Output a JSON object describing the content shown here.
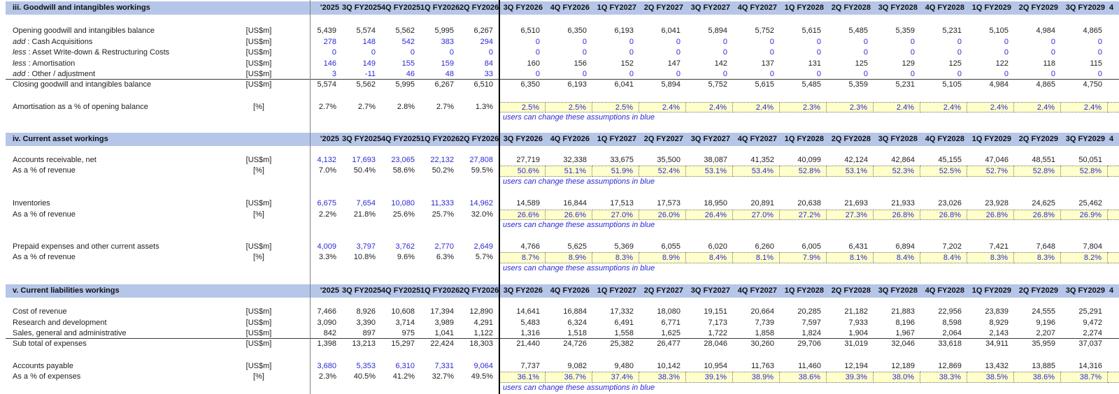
{
  "colors": {
    "band": "#b6c6e8",
    "input_blue": "#2a2ad2",
    "assumption_yellow": "#ffffcc",
    "text": "#1d1d1d"
  },
  "note": "users can change these assumptions in blue",
  "columns": {
    "clipped_left": "'2025",
    "historical": [
      "3Q FY2025",
      "4Q FY2025",
      "1Q FY2026",
      "2Q FY2026"
    ],
    "forecast": [
      "3Q FY2026",
      "4Q FY2026",
      "1Q FY2027",
      "2Q FY2027",
      "3Q FY2027",
      "4Q FY2027",
      "1Q FY2028",
      "2Q FY2028",
      "3Q FY2028",
      "4Q FY2028",
      "1Q FY2029",
      "2Q FY2029",
      "3Q FY2029"
    ],
    "clipped_right": "4"
  },
  "sections": [
    {
      "title": "iii. Goodwill and intangibles workings",
      "rows": [
        {
          "t": "sp",
          "h": 16
        },
        {
          "t": "d",
          "label": "Opening goodwill and intangibles balance",
          "unit": "[US$m]",
          "hc": "k",
          "fk": "k",
          "v0": "5,439",
          "hist": [
            "5,574",
            "5,562",
            "5,995",
            "6,267"
          ],
          "fc": [
            "6,510",
            "6,350",
            "6,193",
            "6,041",
            "5,894",
            "5,752",
            "5,615",
            "5,485",
            "5,359",
            "5,231",
            "5,105",
            "4,984",
            "4,865"
          ]
        },
        {
          "t": "d",
          "prefix": "add",
          "label": " : Cash Acquisitions",
          "unit": "[US$m]",
          "hc": "b",
          "fk": "b",
          "v0": "278",
          "hist": [
            "148",
            "542",
            "383",
            "294"
          ],
          "fc": [
            "0",
            "0",
            "0",
            "0",
            "0",
            "0",
            "0",
            "0",
            "0",
            "0",
            "0",
            "0",
            "0"
          ]
        },
        {
          "t": "d",
          "prefix": "less",
          "label": " : Asset Write-down & Restructuring Costs",
          "unit": "[US$m]",
          "hc": "b",
          "fk": "b",
          "v0": "0",
          "hist": [
            "0",
            "0",
            "0",
            "0"
          ],
          "fc": [
            "0",
            "0",
            "0",
            "0",
            "0",
            "0",
            "0",
            "0",
            "0",
            "0",
            "0",
            "0",
            "0"
          ]
        },
        {
          "t": "d",
          "prefix": "less",
          "label": " : Amortisation",
          "unit": "[US$m]",
          "hc": "b",
          "fk": "k",
          "v0": "146",
          "hist": [
            "149",
            "155",
            "159",
            "84"
          ],
          "fc": [
            "160",
            "156",
            "152",
            "147",
            "142",
            "137",
            "131",
            "125",
            "129",
            "125",
            "122",
            "118",
            "115"
          ]
        },
        {
          "t": "d",
          "prefix": "add",
          "label": " : Other / adjustment",
          "unit": "[US$m]",
          "hc": "b",
          "fk": "b",
          "bb": true,
          "v0": "3",
          "hist": [
            "-11",
            "46",
            "48",
            "33"
          ],
          "fc": [
            "0",
            "0",
            "0",
            "0",
            "0",
            "0",
            "0",
            "0",
            "0",
            "0",
            "0",
            "0",
            "0"
          ]
        },
        {
          "t": "d",
          "label": "Closing goodwill and intangibles balance",
          "unit": "[US$m]",
          "hc": "k",
          "fk": "k",
          "v0": "5,574",
          "hist": [
            "5,562",
            "5,995",
            "6,267",
            "6,510"
          ],
          "fc": [
            "6,350",
            "6,193",
            "6,041",
            "5,894",
            "5,752",
            "5,615",
            "5,485",
            "5,359",
            "5,231",
            "5,105",
            "4,984",
            "4,865",
            "4,750"
          ]
        },
        {
          "t": "sp",
          "h": 16
        },
        {
          "t": "d",
          "label": "Amortisation as a % of opening balance",
          "unit": "[%]",
          "hc": "k",
          "fk": "y",
          "v0": "2.7%",
          "hist": [
            "2.7%",
            "2.8%",
            "2.7%",
            "1.3%"
          ],
          "fc": [
            "2.5%",
            "2.5%",
            "2.5%",
            "2.4%",
            "2.4%",
            "2.4%",
            "2.3%",
            "2.3%",
            "2.4%",
            "2.4%",
            "2.4%",
            "2.4%",
            "2.4%"
          ]
        },
        {
          "t": "n"
        },
        {
          "t": "sp",
          "h": 13
        }
      ]
    },
    {
      "title": "iv. Current asset workings",
      "rows": [
        {
          "t": "sp",
          "h": 13
        },
        {
          "t": "d",
          "label": "Accounts receivable, net",
          "unit": "[US$m]",
          "hc": "b",
          "fk": "k",
          "v0": "4,132",
          "hist": [
            "17,693",
            "23,065",
            "22,132",
            "27,808"
          ],
          "fc": [
            "27,719",
            "32,338",
            "33,675",
            "35,500",
            "38,087",
            "41,352",
            "40,099",
            "42,124",
            "42,864",
            "45,155",
            "47,046",
            "48,551",
            "50,051"
          ]
        },
        {
          "t": "d",
          "label": "As a % of revenue",
          "unit": "[%]",
          "hc": "k",
          "fk": "y",
          "v0": "7.0%",
          "hist": [
            "50.4%",
            "58.6%",
            "50.2%",
            "59.5%"
          ],
          "fc": [
            "50.6%",
            "51.1%",
            "51.9%",
            "52.4%",
            "53.1%",
            "53.4%",
            "52.8%",
            "53.1%",
            "52.3%",
            "52.5%",
            "52.7%",
            "52.8%",
            "52.8%"
          ]
        },
        {
          "t": "n"
        },
        {
          "t": "sp",
          "h": 16
        },
        {
          "t": "d",
          "label": "Inventories",
          "unit": "[US$m]",
          "hc": "b",
          "fk": "k",
          "v0": "6,675",
          "hist": [
            "7,654",
            "10,080",
            "11,333",
            "14,962"
          ],
          "fc": [
            "14,589",
            "16,844",
            "17,513",
            "17,573",
            "18,950",
            "20,891",
            "20,638",
            "21,693",
            "21,933",
            "23,026",
            "23,928",
            "24,625",
            "25,462"
          ]
        },
        {
          "t": "d",
          "label": "As a % of revenue",
          "unit": "[%]",
          "hc": "k",
          "fk": "y",
          "v0": "2.2%",
          "hist": [
            "21.8%",
            "25.6%",
            "25.7%",
            "32.0%"
          ],
          "fc": [
            "26.6%",
            "26.6%",
            "27.0%",
            "26.0%",
            "26.4%",
            "27.0%",
            "27.2%",
            "27.3%",
            "26.8%",
            "26.8%",
            "26.8%",
            "26.8%",
            "26.9%"
          ]
        },
        {
          "t": "n"
        },
        {
          "t": "sp",
          "h": 15
        },
        {
          "t": "d",
          "label": "Prepaid expenses and other current assets",
          "unit": "[US$m]",
          "hc": "b",
          "fk": "k",
          "v0": "4,009",
          "hist": [
            "3,797",
            "3,762",
            "2,770",
            "2,649"
          ],
          "fc": [
            "4,766",
            "5,625",
            "5,369",
            "6,055",
            "6,020",
            "6,260",
            "6,005",
            "6,431",
            "6,894",
            "7,202",
            "7,421",
            "7,648",
            "7,804"
          ]
        },
        {
          "t": "d",
          "label": "As a % of revenue",
          "unit": "[%]",
          "hc": "k",
          "fk": "y",
          "v0": "3.3%",
          "hist": [
            "10.8%",
            "9.6%",
            "6.3%",
            "5.7%"
          ],
          "fc": [
            "8.7%",
            "8.9%",
            "8.3%",
            "8.9%",
            "8.4%",
            "8.1%",
            "7.9%",
            "8.1%",
            "8.4%",
            "8.4%",
            "8.3%",
            "8.3%",
            "8.2%"
          ]
        },
        {
          "t": "n"
        },
        {
          "t": "sp",
          "h": 15
        }
      ]
    },
    {
      "title": "v. Current liabilities workings",
      "rows": [
        {
          "t": "sp",
          "h": 13
        },
        {
          "t": "d",
          "label": "Cost of revenue",
          "unit": "[US$m]",
          "hc": "k",
          "fk": "k",
          "v0": "7,466",
          "hist": [
            "8,926",
            "10,608",
            "17,394",
            "12,890"
          ],
          "fc": [
            "14,641",
            "16,884",
            "17,332",
            "18,080",
            "19,151",
            "20,664",
            "20,285",
            "21,182",
            "21,883",
            "22,956",
            "23,839",
            "24,555",
            "25,291"
          ]
        },
        {
          "t": "d",
          "label": "Research and development",
          "unit": "[US$m]",
          "hc": "k",
          "fk": "k",
          "v0": "3,090",
          "hist": [
            "3,390",
            "3,714",
            "3,989",
            "4,291"
          ],
          "fc": [
            "5,483",
            "6,324",
            "6,491",
            "6,771",
            "7,173",
            "7,739",
            "7,597",
            "7,933",
            "8,196",
            "8,598",
            "8,929",
            "9,196",
            "9,472"
          ]
        },
        {
          "t": "d",
          "label": "Sales, general and administrative",
          "unit": "[US$m]",
          "hc": "k",
          "fk": "k",
          "bb": true,
          "v0": "842",
          "hist": [
            "897",
            "975",
            "1,041",
            "1,122"
          ],
          "fc": [
            "1,316",
            "1,518",
            "1,558",
            "1,625",
            "1,722",
            "1,858",
            "1,824",
            "1,904",
            "1,967",
            "2,064",
            "2,143",
            "2,207",
            "2,274"
          ]
        },
        {
          "t": "d",
          "label": "Sub total of expenses",
          "unit": "[US$m]",
          "hc": "k",
          "fk": "k",
          "v0": "1,398",
          "hist": [
            "13,213",
            "15,297",
            "22,424",
            "18,303"
          ],
          "fc": [
            "21,440",
            "24,726",
            "25,382",
            "26,477",
            "28,046",
            "30,260",
            "29,706",
            "31,019",
            "32,046",
            "33,618",
            "34,911",
            "35,959",
            "37,037"
          ]
        },
        {
          "t": "sp",
          "h": 16
        },
        {
          "t": "d",
          "label": "Accounts payable",
          "unit": "[US$m]",
          "hc": "b",
          "fk": "k",
          "v0": "3,680",
          "hist": [
            "5,353",
            "6,310",
            "7,331",
            "9,064"
          ],
          "fc": [
            "7,737",
            "9,082",
            "9,480",
            "10,142",
            "10,954",
            "11,763",
            "11,460",
            "12,194",
            "12,189",
            "12,869",
            "13,432",
            "13,885",
            "14,316"
          ]
        },
        {
          "t": "d",
          "label": "As a % of expenses",
          "unit": "[%]",
          "hc": "k",
          "fk": "y",
          "v0": "2.3%",
          "hist": [
            "40.5%",
            "41.2%",
            "32.7%",
            "49.5%"
          ],
          "fc": [
            "36.1%",
            "36.7%",
            "37.4%",
            "38.3%",
            "39.1%",
            "38.9%",
            "38.6%",
            "39.3%",
            "38.0%",
            "38.3%",
            "38.5%",
            "38.6%",
            "38.7%"
          ]
        },
        {
          "t": "n"
        }
      ]
    }
  ]
}
